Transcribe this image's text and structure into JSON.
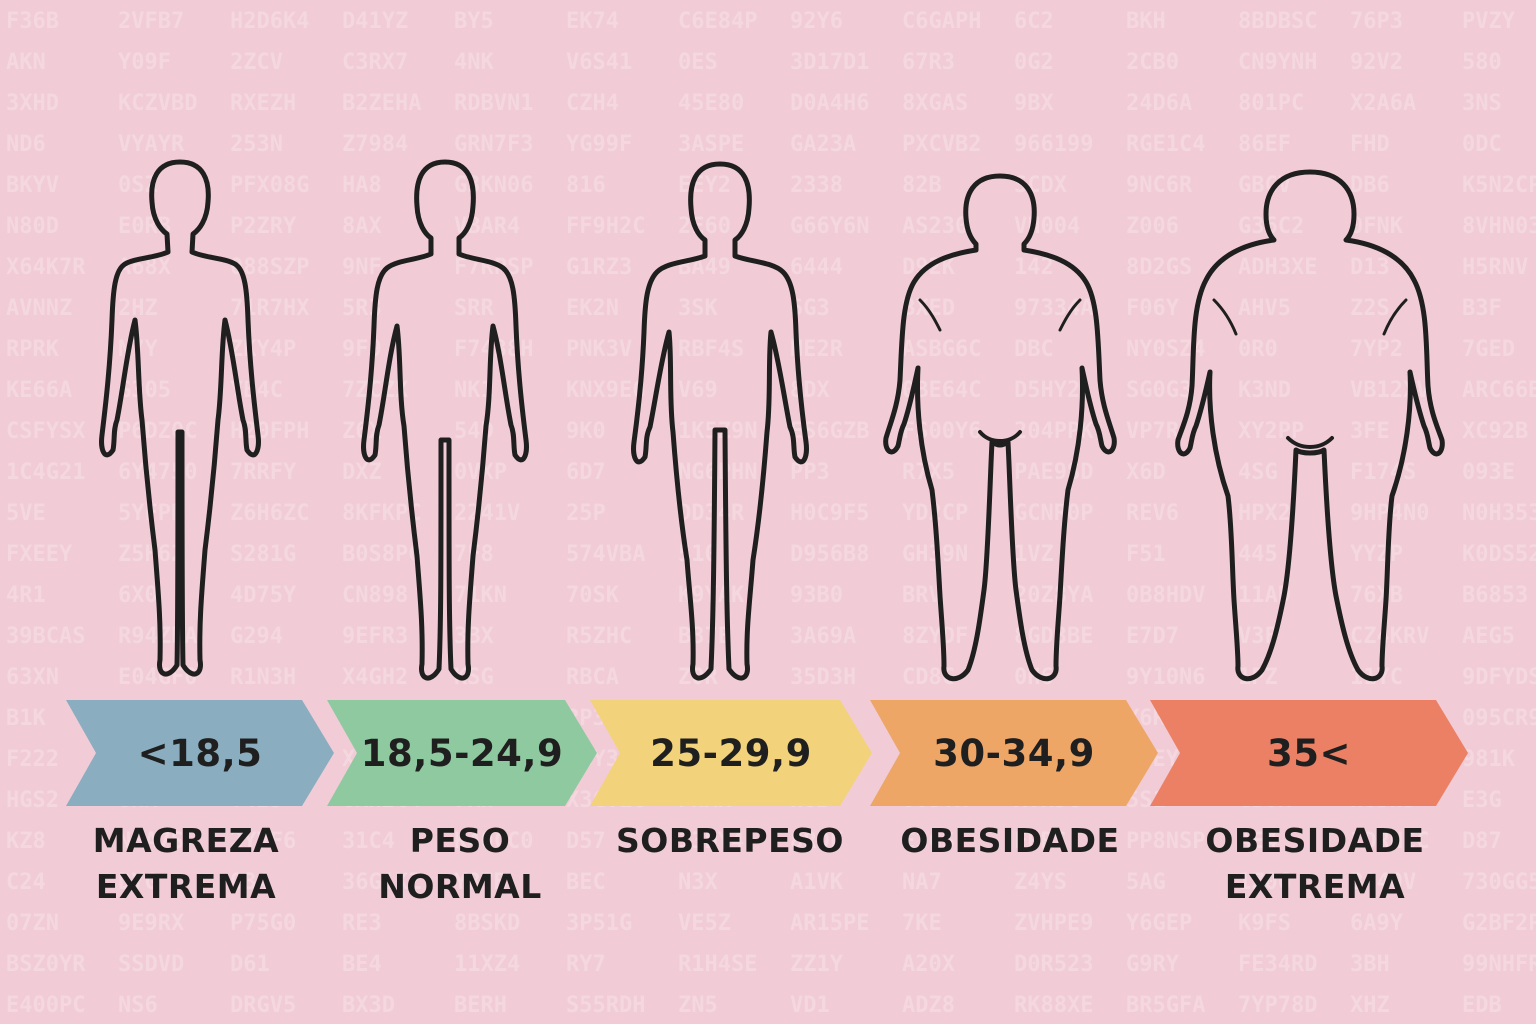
{
  "categories": [
    {
      "range": "<18,5",
      "caption_lines": [
        "MAGREZA",
        "EXTREMA"
      ],
      "color": "#8aaec0"
    },
    {
      "range": "18,5-24,9",
      "caption_lines": [
        "PESO",
        "NORMAL"
      ],
      "color": "#8fc9a0"
    },
    {
      "range": "25-29,9",
      "caption_lines": [
        "SOBREPESO"
      ],
      "color": "#f2d27a"
    },
    {
      "range": "30-34,9",
      "caption_lines": [
        "OBESIDADE"
      ],
      "color": "#eea667"
    },
    {
      "range": "35<",
      "caption_lines": [
        "OBESIDADE",
        "EXTREMA"
      ],
      "color": "#ec8065"
    }
  ],
  "colors": {
    "background": "#f1ccd6",
    "outline": "#1f1f1f",
    "text": "#1f1f1f"
  }
}
